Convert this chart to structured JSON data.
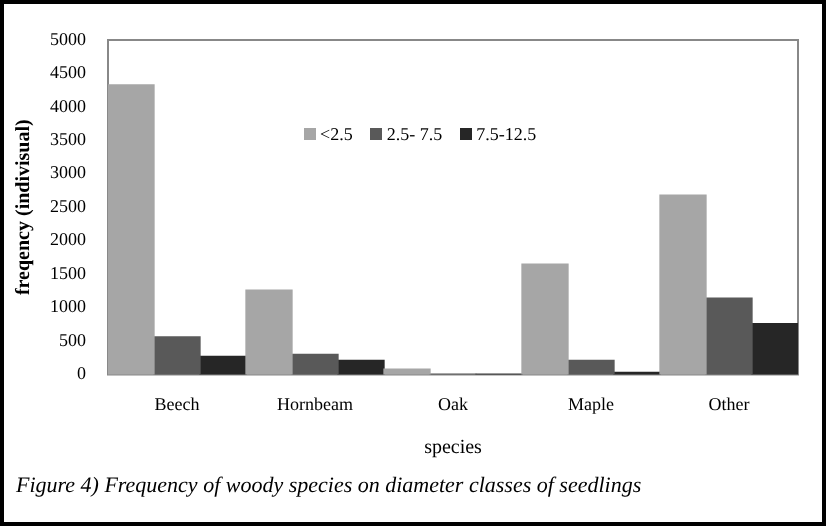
{
  "chart_data": {
    "type": "bar",
    "xlabel": "species",
    "ylabel": "freqency (indivisual)",
    "categories": [
      "Beech",
      "Hornbeam",
      "Oak",
      "Maple",
      "Other"
    ],
    "series": [
      {
        "name": "<2.5",
        "color": "#a6a6a6",
        "values": [
          4330,
          1260,
          80,
          1650,
          2680
        ]
      },
      {
        "name": "2.5- 7.5",
        "color": "#595959",
        "values": [
          560,
          300,
          0,
          210,
          1140
        ]
      },
      {
        "name": "7.5-12.5",
        "color": "#262626",
        "values": [
          270,
          210,
          0,
          30,
          760
        ]
      }
    ],
    "ylim": [
      0,
      5000
    ],
    "yticks": [
      0,
      500,
      1000,
      1500,
      2000,
      2500,
      3000,
      3500,
      4000,
      4500,
      5000
    ],
    "grid": false,
    "legend": "top",
    "annotations": [
      "Figure 4) Frequency of woody species on diameter classes of seedlings"
    ]
  }
}
